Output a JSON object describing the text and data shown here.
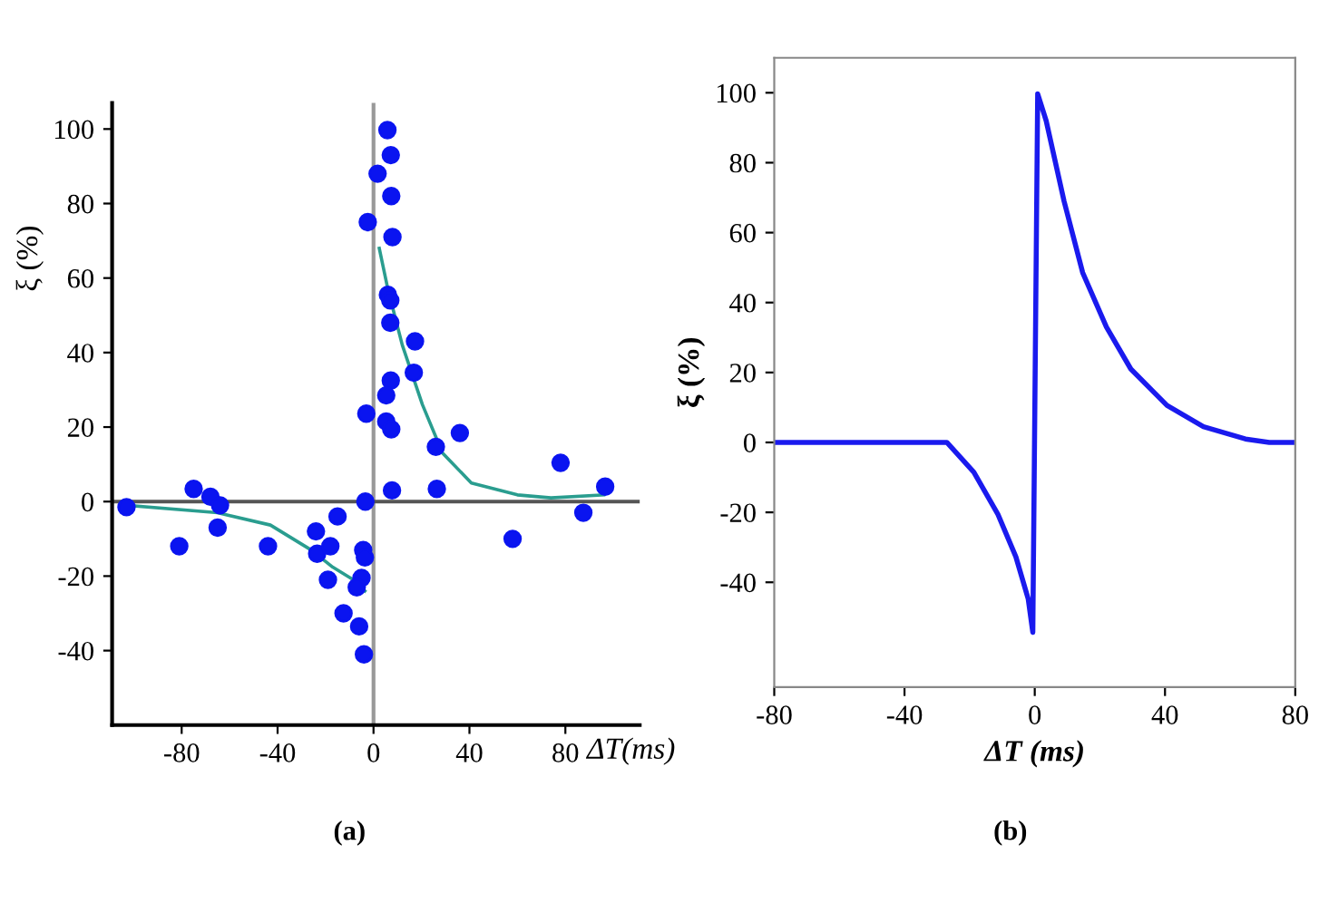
{
  "chart_data": [
    {
      "type": "scatter",
      "xlabel": "ΔT(ms)",
      "ylabel": "ξ (%)",
      "annotations": [
        "(a)"
      ],
      "xlim": [
        -109,
        111
      ],
      "ylim": [
        -60,
        107
      ],
      "xticks": [
        -80,
        -40,
        0,
        40,
        80
      ],
      "yticks": [
        -40,
        -20,
        0,
        20,
        40,
        60,
        80,
        100
      ],
      "grid": false,
      "marker": "circle",
      "ref_lines": [
        {
          "axis": "x",
          "value": 0,
          "color": "#999999"
        },
        {
          "axis": "y",
          "value": 0,
          "color": "#555555"
        }
      ],
      "series": [
        {
          "color": "#0a14f0",
          "x": [
            -103,
            -81,
            -75,
            -68,
            -64,
            -65,
            -44,
            -24,
            -23.5,
            -18,
            -15,
            -19,
            -12.5,
            -6,
            -4,
            -4.3,
            -3.6,
            -5,
            -7,
            -3.4,
            -3,
            -2.4,
            1.7,
            5.8,
            7.2,
            7.4,
            7.9,
            6,
            7,
            7,
            7.2,
            5.3,
            5.3,
            7.4,
            7.7,
            17.3,
            16.8,
            26,
            26.4,
            36,
            58,
            78,
            87.5,
            96.6
          ],
          "values": [
            -1.5,
            -12,
            3.4,
            1.3,
            -1,
            -7,
            -12,
            -8,
            -14,
            -12,
            -4,
            -21,
            -30,
            -33.5,
            -41,
            -13,
            -15,
            -20.5,
            -23,
            0,
            23.6,
            75,
            88,
            99.7,
            93,
            82,
            71,
            55.5,
            54,
            48,
            32.5,
            28.5,
            21.5,
            19.4,
            3,
            43,
            34.6,
            14.7,
            3.4,
            18.4,
            -10,
            10.4,
            -3,
            4
          ]
        },
        {
          "type": "line",
          "color": "#2a9d8f",
          "marker": "none",
          "x": [
            -103,
            -65,
            -43,
            -26,
            -17,
            -8.4,
            -3.6
          ],
          "values": [
            -1,
            -3,
            -6.3,
            -13,
            -17.6,
            -21,
            -24
          ]
        },
        {
          "type": "line",
          "color": "#2a9d8f",
          "marker": "none",
          "x": [
            2.4,
            6,
            12,
            20.4,
            28.8,
            40.8,
            60,
            74,
            96
          ],
          "values": [
            68,
            57,
            42,
            26,
            13,
            5,
            1.8,
            1,
            1.8
          ]
        }
      ]
    },
    {
      "type": "line",
      "xlabel": "ΔT (ms)",
      "ylabel": "ξ (%)",
      "annotations": [
        "(b)"
      ],
      "xlim": [
        -80,
        80
      ],
      "ylim": [
        -70,
        110
      ],
      "xticks": [
        -80,
        -40,
        0,
        40,
        80
      ],
      "yticks": [
        -40,
        -20,
        0,
        20,
        40,
        60,
        80,
        100
      ],
      "grid": false,
      "marker": "none",
      "line_style": "solid",
      "series": [
        {
          "color": "#1a1aee",
          "x": [
            -80,
            -27,
            -18.7,
            -11.3,
            -5.8,
            -2,
            -0.6,
            0.9,
            3.5,
            9,
            14.7,
            22,
            29.5,
            40.6,
            51.8,
            64.7,
            72,
            80
          ],
          "values": [
            0,
            0,
            -8.5,
            -20.6,
            -32.7,
            -44.8,
            -54.3,
            99.7,
            92,
            69,
            48.6,
            33,
            21,
            10.6,
            4.5,
            1,
            0,
            0
          ]
        }
      ]
    }
  ]
}
